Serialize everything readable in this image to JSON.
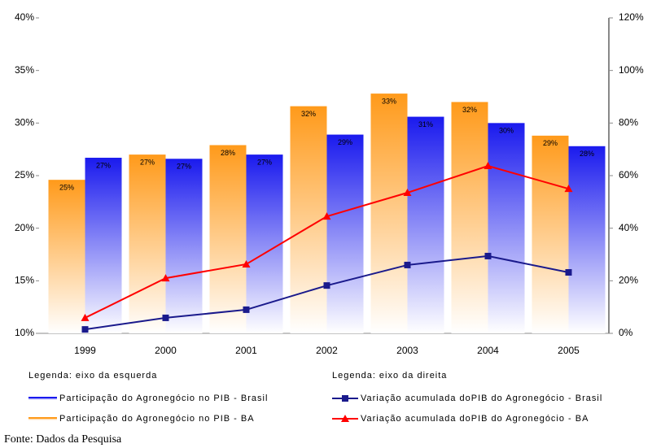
{
  "chart_data": {
    "type": "bar",
    "categories": [
      "1999",
      "2000",
      "2001",
      "2002",
      "2003",
      "2004",
      "2005"
    ],
    "series": [
      {
        "name": "Participação do Agronegócio no PIB - BA",
        "type": "bar",
        "color": "#ff9a1a",
        "values": [
          24.6,
          27.0,
          27.9,
          31.6,
          32.8,
          32.0,
          28.8
        ],
        "value_labels": [
          "25%",
          "27%",
          "28%",
          "32%",
          "33%",
          "32%",
          "29%"
        ]
      },
      {
        "name": "Participação do Agronegócio no PIB - Brasil",
        "type": "bar",
        "color": "#1a1aee",
        "values": [
          26.7,
          26.6,
          27.0,
          28.9,
          30.6,
          30.0,
          27.8
        ],
        "value_labels": [
          "27%",
          "27%",
          "27%",
          "29%",
          "31%",
          "30%",
          "28%"
        ]
      },
      {
        "name": "Variação acumulada doPIB do Agronegócio - Brasil",
        "type": "line",
        "axis": "y2",
        "color": "#1a1a8c",
        "marker": "square",
        "values": [
          1.5,
          5.9,
          9.0,
          18.2,
          26.0,
          29.4,
          23.2
        ]
      },
      {
        "name": "Variação acumulada doPIB do Agronegócio - BA",
        "type": "line",
        "axis": "y2",
        "color": "#ff0000",
        "marker": "triangle",
        "values": [
          5.9,
          21.0,
          26.3,
          44.5,
          53.5,
          63.7,
          55.0
        ]
      }
    ],
    "ylim": [
      10,
      40
    ],
    "yticks": [
      {
        "value": 10,
        "label": "10%"
      },
      {
        "value": 15,
        "label": "15%"
      },
      {
        "value": 20,
        "label": "20%"
      },
      {
        "value": 25,
        "label": "25%"
      },
      {
        "value": 30,
        "label": "30%"
      },
      {
        "value": 35,
        "label": "35%"
      },
      {
        "value": 40,
        "label": "40%"
      }
    ],
    "y2lim": [
      0,
      120
    ],
    "y2ticks": [
      {
        "value": 0,
        "label": "0%"
      },
      {
        "value": 20,
        "label": "20%"
      },
      {
        "value": 40,
        "label": "40%"
      },
      {
        "value": 60,
        "label": "60%"
      },
      {
        "value": 80,
        "label": "80%"
      },
      {
        "value": 100,
        "label": "100%"
      },
      {
        "value": 120,
        "label": "120%"
      }
    ],
    "legend_left_title": "Legenda: eixo da esquerda",
    "legend_right_title": "Legenda: eixo da direita",
    "source": "Fonte: Dados da Pesquisa"
  }
}
